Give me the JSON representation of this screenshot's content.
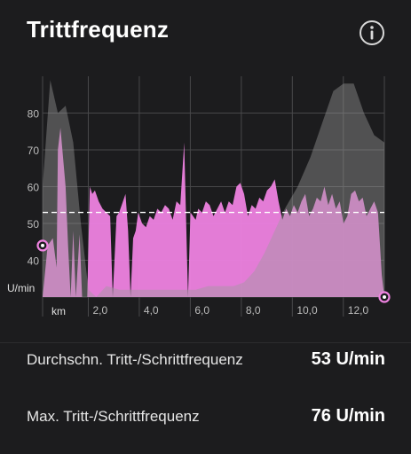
{
  "header": {
    "title": "Trittfrequenz",
    "info_icon": "info-icon"
  },
  "colors": {
    "background": "#1c1c1e",
    "cadence_fill": "#ee82e0",
    "elevation_fill": "#5a5a5c",
    "average_line": "#ffffff",
    "marker_ring": "#ee82e0"
  },
  "chart_data": {
    "type": "area",
    "title": "",
    "xlabel": "km",
    "ylabel": "U/min",
    "x_unit_label": "km",
    "y_unit_label": "U/min",
    "xlim": [
      0,
      13.4
    ],
    "ylim": [
      30,
      90
    ],
    "x_ticks": [
      2,
      4,
      6,
      8,
      10,
      12
    ],
    "x_tick_labels": [
      "2,0",
      "4,0",
      "6,0",
      "8,0",
      "10,0",
      "12,0"
    ],
    "y_ticks": [
      40,
      50,
      60,
      70,
      80
    ],
    "y_tick_labels": [
      "40",
      "50",
      "60",
      "70",
      "80"
    ],
    "grid": true,
    "average_value": 53,
    "series": [
      {
        "key": "cadence",
        "x": [
          0.0,
          0.2,
          0.4,
          0.55,
          0.6,
          0.7,
          0.9,
          1.0,
          1.1,
          1.2,
          1.3,
          1.45,
          1.55,
          1.65,
          1.75,
          1.85,
          1.95,
          2.05,
          2.2,
          2.35,
          2.5,
          2.65,
          2.75,
          2.9,
          3.0,
          3.1,
          3.25,
          3.35,
          3.45,
          3.55,
          3.65,
          3.75,
          3.9,
          4.05,
          4.2,
          4.35,
          4.5,
          4.65,
          4.8,
          4.95,
          5.1,
          5.25,
          5.4,
          5.55,
          5.7,
          5.8,
          5.9,
          6.0,
          6.1,
          6.25,
          6.4,
          6.55,
          6.7,
          6.85,
          7.0,
          7.15,
          7.3,
          7.45,
          7.6,
          7.75,
          7.9,
          8.05,
          8.2,
          8.35,
          8.5,
          8.65,
          8.8,
          8.95,
          9.1,
          9.25,
          9.4,
          9.55,
          9.7,
          9.85,
          10.0,
          10.15,
          10.3,
          10.45,
          10.6,
          10.75,
          10.9,
          11.05,
          11.2,
          11.35,
          11.5,
          11.65,
          11.8,
          11.95,
          12.1,
          12.25,
          12.4,
          12.55,
          12.7,
          12.85,
          13.0,
          13.15,
          13.3,
          13.4
        ],
        "y": [
          30,
          44,
          46,
          38,
          70,
          76,
          60,
          44,
          30,
          48,
          30,
          47,
          30,
          30,
          30,
          60,
          58,
          59,
          56,
          54,
          53,
          52,
          30,
          52,
          53,
          55,
          58,
          48,
          30,
          46,
          48,
          53,
          50,
          49,
          52,
          51,
          54,
          53,
          55,
          54,
          51,
          56,
          55,
          72,
          30,
          53,
          52,
          51,
          54,
          53,
          56,
          55,
          52,
          54,
          56,
          53,
          56,
          55,
          60,
          61,
          58,
          52,
          55,
          54,
          57,
          56,
          59,
          60,
          62,
          56,
          51,
          54,
          52,
          55,
          53,
          56,
          58,
          52,
          54,
          57,
          56,
          60,
          55,
          58,
          54,
          56,
          50,
          52,
          58,
          59,
          56,
          57,
          52,
          54,
          56,
          53,
          36,
          30
        ]
      },
      {
        "key": "elevation",
        "x": [
          0.0,
          0.3,
          0.6,
          0.9,
          1.2,
          1.5,
          1.8,
          2.1,
          2.5,
          3.0,
          3.5,
          4.0,
          4.5,
          5.0,
          5.5,
          6.0,
          6.5,
          7.0,
          7.5,
          7.9,
          8.3,
          8.7,
          9.1,
          9.5,
          10.0,
          10.5,
          11.0,
          11.4,
          11.8,
          12.2,
          12.6,
          13.0,
          13.4
        ],
        "y": [
          60,
          89,
          80,
          82,
          72,
          50,
          32,
          30,
          33,
          32,
          32,
          32,
          32,
          32,
          32,
          32,
          33,
          33,
          33,
          34,
          37,
          42,
          48,
          54,
          60,
          68,
          78,
          86,
          88,
          88,
          80,
          74,
          72
        ]
      }
    ]
  }
}
